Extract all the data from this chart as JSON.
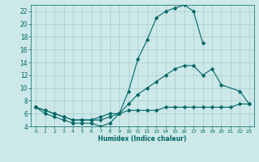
{
  "xlabel": "Humidex (Indice chaleur)",
  "xlim": [
    -0.5,
    23.5
  ],
  "ylim": [
    4,
    23
  ],
  "yticks": [
    4,
    6,
    8,
    10,
    12,
    14,
    16,
    18,
    20,
    22
  ],
  "xticks": [
    0,
    1,
    2,
    3,
    4,
    5,
    6,
    7,
    8,
    9,
    10,
    11,
    12,
    13,
    14,
    15,
    16,
    17,
    18,
    19,
    20,
    21,
    22,
    23
  ],
  "bg_color": "#cce8e8",
  "grid_color": "#aacccc",
  "line_color": "#006666",
  "lines": [
    {
      "x": [
        0,
        1,
        2,
        3,
        4,
        5,
        6,
        7,
        8,
        9,
        10,
        11,
        12,
        13,
        14,
        15,
        16,
        17,
        18
      ],
      "y": [
        7,
        6,
        5.5,
        5,
        4.5,
        4.5,
        4.5,
        4,
        4.5,
        6,
        9.5,
        14.5,
        17.5,
        21,
        22,
        22.5,
        23,
        22,
        17
      ]
    },
    {
      "x": [
        0,
        1,
        2,
        3,
        4,
        5,
        6,
        7,
        8,
        9,
        10,
        11,
        12,
        13,
        14,
        15,
        16,
        17,
        18,
        19,
        20,
        22,
        23
      ],
      "y": [
        7,
        6.5,
        6,
        5.5,
        5,
        5,
        5,
        5,
        5.5,
        6,
        7.5,
        9,
        10,
        11,
        12,
        13,
        13.5,
        13.5,
        12,
        13,
        10.5,
        9.5,
        7.5
      ]
    },
    {
      "x": [
        0,
        1,
        2,
        3,
        4,
        5,
        6,
        7,
        8,
        9,
        10,
        11,
        12,
        13,
        14,
        15,
        16,
        17,
        18,
        19,
        20,
        21,
        22,
        23
      ],
      "y": [
        7,
        6.5,
        6,
        5.5,
        5,
        5,
        5,
        5.5,
        6,
        6,
        6.5,
        6.5,
        6.5,
        6.5,
        7,
        7,
        7,
        7,
        7,
        7,
        7,
        7,
        7.5,
        7.5
      ]
    }
  ]
}
